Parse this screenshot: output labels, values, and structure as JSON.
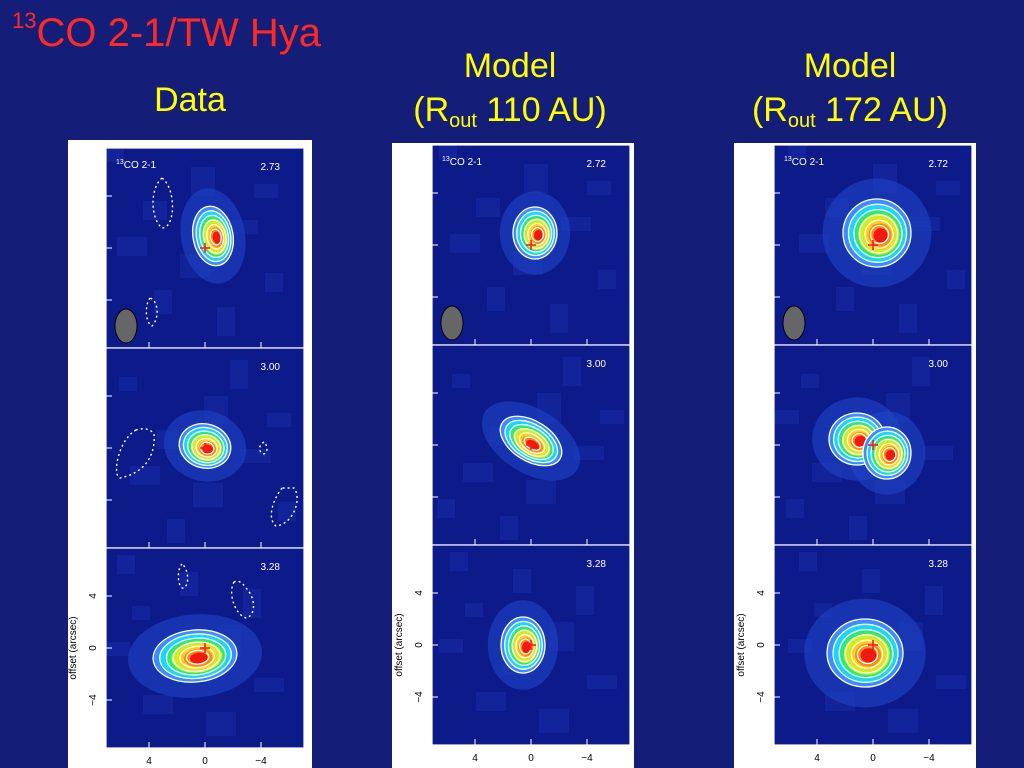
{
  "title": {
    "superscript": "13",
    "text": "CO 2-1/TW Hya"
  },
  "columns": [
    {
      "id": "data",
      "heading_line1": "Data",
      "heading_line2": "",
      "heading_line2_sub": "",
      "heading_line2_after": "",
      "panels": [
        {
          "line_label": "CO 2-1",
          "line_label_sup": "13",
          "velocity": "2.73"
        },
        {
          "velocity": "3.00"
        },
        {
          "velocity": "3.28"
        }
      ]
    },
    {
      "id": "model-110",
      "heading_line1": "Model",
      "heading_line2": "(R",
      "heading_line2_sub": "out",
      "heading_line2_after": " 110 AU)",
      "panels": [
        {
          "line_label": "CO 2-1",
          "line_label_sup": "13",
          "velocity": "2.72"
        },
        {
          "velocity": "3.00"
        },
        {
          "velocity": "3.28"
        }
      ]
    },
    {
      "id": "model-172",
      "heading_line1": "Model",
      "heading_line2": "(R",
      "heading_line2_sub": "out",
      "heading_line2_after": " 172 AU)",
      "panels": [
        {
          "line_label": "CO 2-1",
          "line_label_sup": "13",
          "velocity": "2.72"
        },
        {
          "velocity": "3.00"
        },
        {
          "velocity": "3.28"
        }
      ]
    }
  ],
  "axes": {
    "ylabel": "offset (arcsec)",
    "y_ticks": [
      "4",
      "0",
      "−4"
    ],
    "x_ticks": [
      "4",
      "0",
      "−4"
    ]
  }
}
